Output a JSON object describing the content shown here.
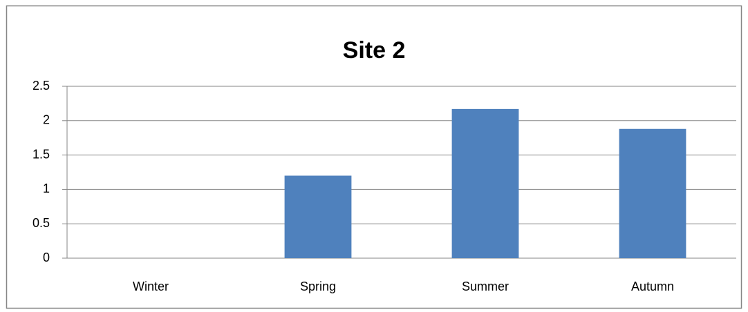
{
  "chart_data": {
    "type": "bar",
    "title": "Site 2",
    "categories": [
      "Winter",
      "Spring",
      "Summer",
      "Autumn"
    ],
    "values": [
      0,
      1.2,
      2.17,
      1.88
    ],
    "color": "#4f81bd",
    "ylim": [
      0,
      2.5
    ],
    "yticks": [
      0,
      0.5,
      1,
      1.5,
      2,
      2.5
    ],
    "grid": true
  }
}
